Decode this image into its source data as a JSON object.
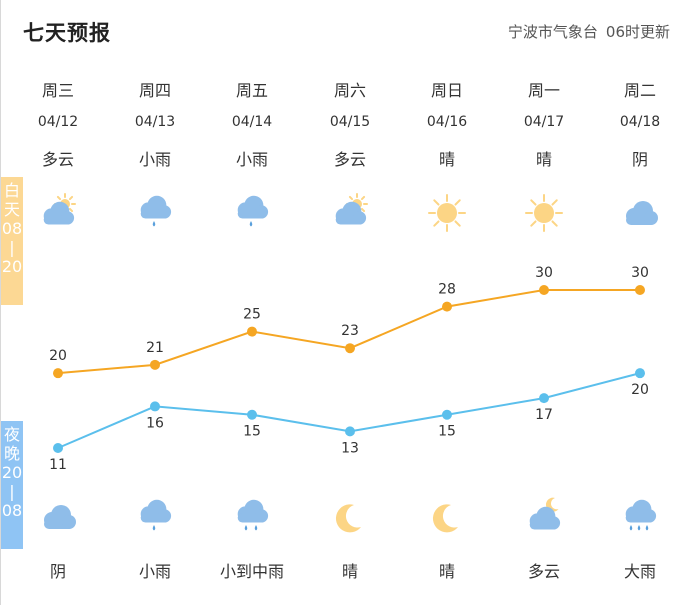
{
  "header": {
    "title": "七天预报",
    "source": "宁波市气象台",
    "update_time": "06时更新"
  },
  "badges": {
    "day": [
      "白",
      "天",
      "08",
      "|",
      "20"
    ],
    "night": [
      "夜",
      "晚",
      "20",
      "|",
      "08"
    ]
  },
  "days": [
    {
      "weekday": "周三",
      "date": "04/12",
      "day_weather": "多云",
      "day_icon": "partly-cloudy-day-icon",
      "night_weather": "阴",
      "night_icon": "cloud-icon"
    },
    {
      "weekday": "周四",
      "date": "04/13",
      "day_weather": "小雨",
      "day_icon": "light-rain-icon",
      "night_weather": "小雨",
      "night_icon": "light-rain-icon"
    },
    {
      "weekday": "周五",
      "date": "04/14",
      "day_weather": "小雨",
      "day_icon": "light-rain-icon",
      "night_weather": "小到中雨",
      "night_icon": "moderate-rain-icon"
    },
    {
      "weekday": "周六",
      "date": "04/15",
      "day_weather": "多云",
      "day_icon": "partly-cloudy-day-icon",
      "night_weather": "晴",
      "night_icon": "moon-icon"
    },
    {
      "weekday": "周日",
      "date": "04/16",
      "day_weather": "晴",
      "day_icon": "sun-icon",
      "night_weather": "晴",
      "night_icon": "moon-icon"
    },
    {
      "weekday": "周一",
      "date": "04/17",
      "day_weather": "晴",
      "day_icon": "sun-icon",
      "night_weather": "多云",
      "night_icon": "partly-cloudy-night-icon"
    },
    {
      "weekday": "周二",
      "date": "04/18",
      "day_weather": "阴",
      "day_icon": "cloud-icon",
      "night_weather": "大雨",
      "night_icon": "heavy-rain-icon"
    }
  ],
  "chart_data": {
    "type": "line",
    "categories": [
      "04/12",
      "04/13",
      "04/14",
      "04/15",
      "04/16",
      "04/17",
      "04/18"
    ],
    "series": [
      {
        "values": [
          20,
          21,
          25,
          23,
          28,
          30,
          30
        ],
        "color": "#f5a623"
      },
      {
        "values": [
          11,
          16,
          15,
          13,
          15,
          17,
          20
        ],
        "color": "#5bbfec"
      }
    ],
    "ylim": [
      11,
      30
    ],
    "grid": false
  },
  "colors": {
    "cloud": "#8fbde9",
    "sun": "#fcd585",
    "rain": "#5aa0dc",
    "day_badge": "#fcd894",
    "night_badge": "#8fc4f4"
  }
}
